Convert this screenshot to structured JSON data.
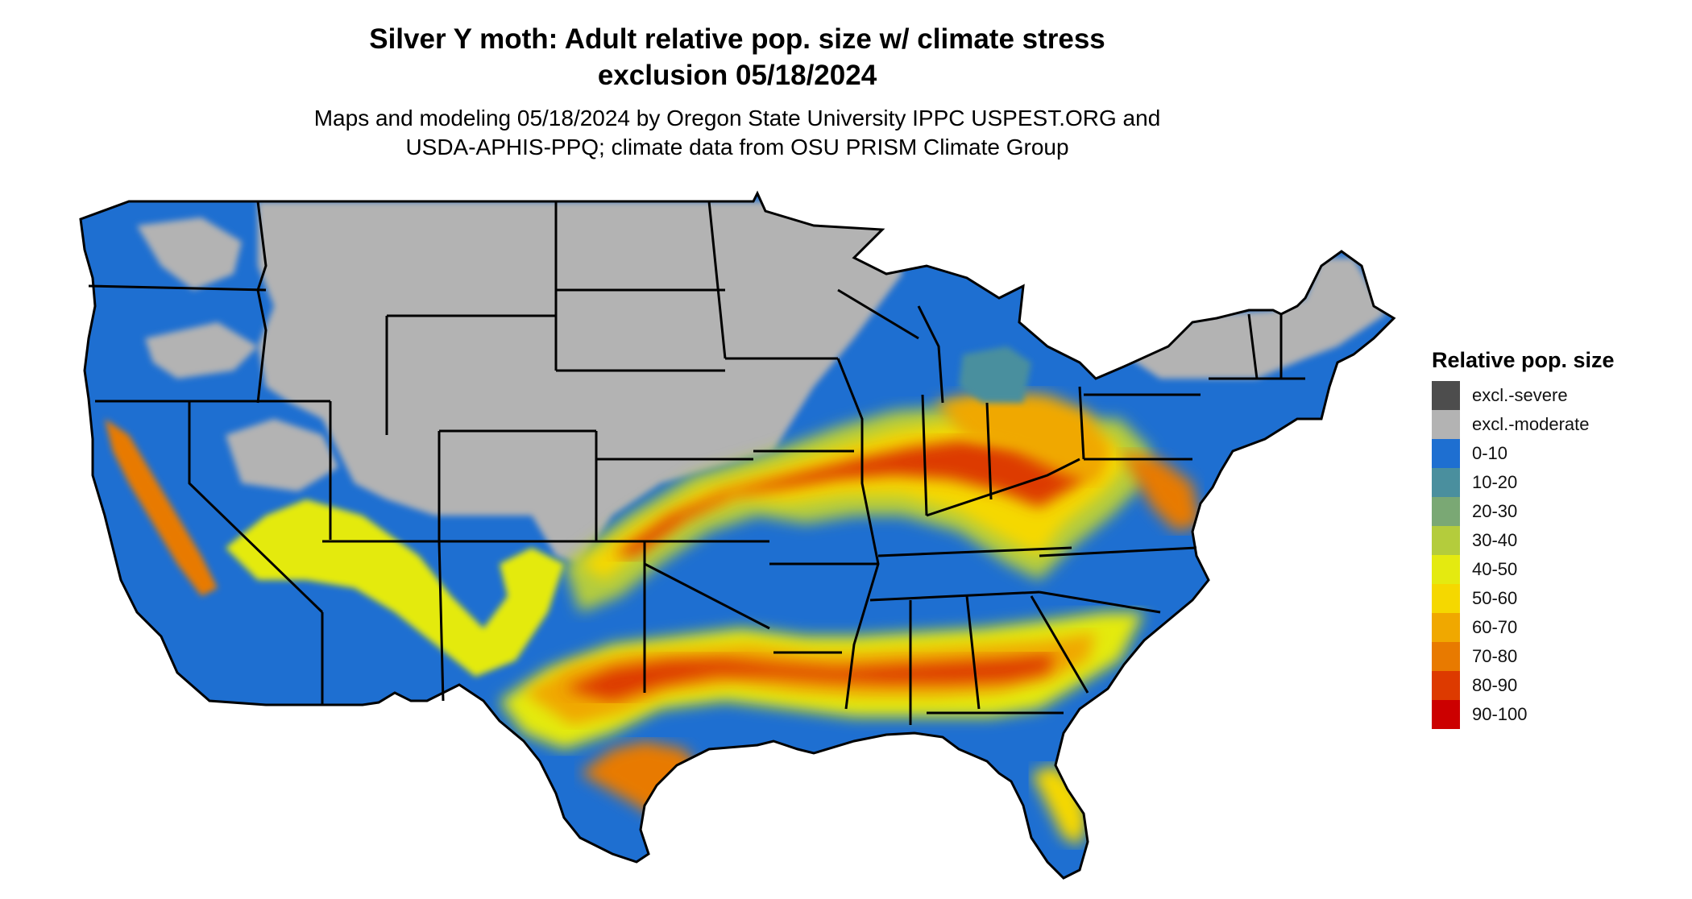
{
  "title": {
    "line1": "Silver Y moth: Adult relative pop. size w/ climate stress",
    "line2": "exclusion 05/18/2024"
  },
  "subtitle": {
    "line1": "Maps and modeling 05/18/2024 by Oregon State University IPPC USPEST.ORG and",
    "line2": "USDA-APHIS-PPQ; climate data from OSU PRISM Climate Group"
  },
  "map": {
    "icon": "map-contiguous-us-icon",
    "region": "contiguous-united-states",
    "boundary_color": "#000000",
    "ocean_color": "#ffffff"
  },
  "legend": {
    "title": "Relative pop. size",
    "placement": "right",
    "items": [
      {
        "label": "excl.-severe",
        "color": "#4d4d4d"
      },
      {
        "label": "excl.-moderate",
        "color": "#b3b3b3"
      },
      {
        "label": "0-10",
        "color": "#1e6fd1"
      },
      {
        "label": "10-20",
        "color": "#4a8f9e"
      },
      {
        "label": "20-30",
        "color": "#7aa874"
      },
      {
        "label": "30-40",
        "color": "#b4cc3c"
      },
      {
        "label": "40-50",
        "color": "#e4ea10"
      },
      {
        "label": "50-60",
        "color": "#f5d800"
      },
      {
        "label": "60-70",
        "color": "#f0a800"
      },
      {
        "label": "70-80",
        "color": "#e87a00"
      },
      {
        "label": "80-90",
        "color": "#dd3a00"
      },
      {
        "label": "90-100",
        "color": "#cc0000"
      }
    ]
  }
}
